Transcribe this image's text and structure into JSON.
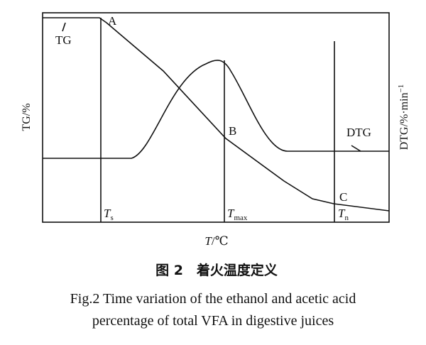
{
  "labels": {
    "tg": "TG",
    "a": "A",
    "b": "B",
    "c": "C",
    "dtg": "DTG",
    "ts": {
      "main": "T",
      "sub": "s"
    },
    "tmax": {
      "main": "T",
      "sub": "max"
    },
    "tn": {
      "main": "T",
      "sub": "n"
    }
  },
  "axes": {
    "left": "TG/%",
    "right": {
      "main": "DTG/%·min",
      "sup": "−1"
    },
    "bottom": {
      "main": "T",
      "unit": "/℃"
    }
  },
  "caption": {
    "cn": "图 2　着火温度定义",
    "en": [
      "Fig.2 Time variation of the ethanol and acetic acid",
      "percentage of total VFA in digestive juices"
    ]
  }
}
